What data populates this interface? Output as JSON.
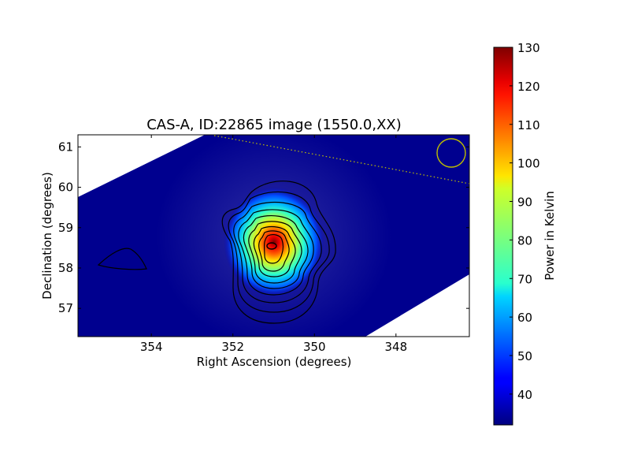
{
  "chart_data": {
    "type": "heatmap",
    "title": "CAS-A, ID:22865 image (1550.0,XX)",
    "xlabel": "Right Ascension (degrees)",
    "ylabel": "Declination (degrees)",
    "colorbar_label": "Power in Kelvin",
    "xlim": [
      355.8,
      346.2
    ],
    "ylim": [
      56.3,
      61.3
    ],
    "x_ticks": [
      354,
      352,
      350,
      348
    ],
    "y_ticks": [
      57,
      58,
      59,
      60,
      61
    ],
    "colorbar_range": [
      32,
      130
    ],
    "colorbar_ticks": [
      40,
      50,
      60,
      70,
      80,
      90,
      100,
      110,
      120,
      130
    ],
    "colormap": "jet",
    "background_level": 34,
    "source": {
      "ra": 350.85,
      "dec": 58.65,
      "peak": 130
    },
    "contour_levels": [
      38,
      45,
      54,
      64,
      74,
      84,
      94,
      104,
      114,
      124
    ],
    "beam_circle_color": "#bfbf00",
    "horizon_line_color": "#bfbf00"
  }
}
